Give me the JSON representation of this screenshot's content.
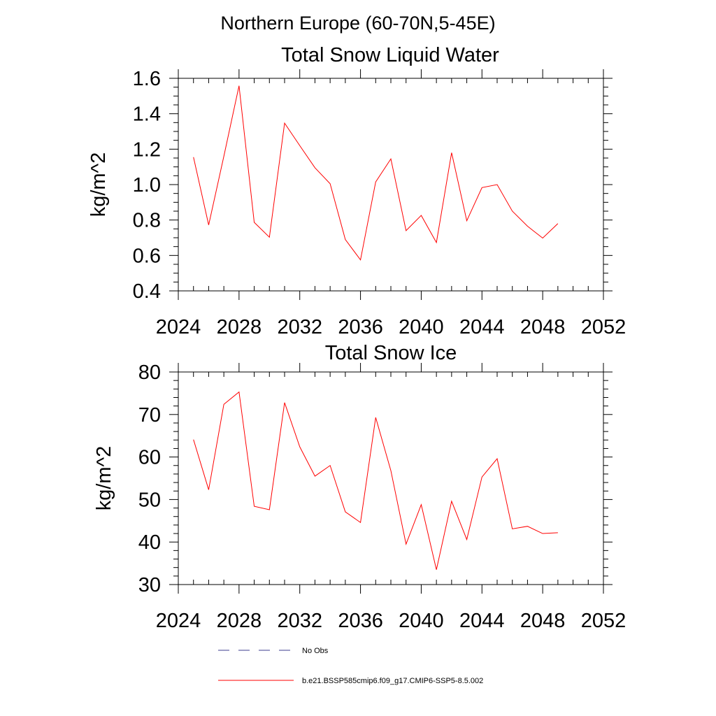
{
  "figure": {
    "title": "Northern Europe (60-70N,5-45E)"
  },
  "chart_data": [
    {
      "type": "line",
      "title": "Total Snow Liquid Water",
      "xlabel": "",
      "ylabel": "kg/m^2",
      "xlim": [
        2024,
        2052
      ],
      "ylim": [
        0.4,
        1.6
      ],
      "x_ticks": [
        2024,
        2028,
        2032,
        2036,
        2040,
        2044,
        2048,
        2052
      ],
      "x_tick_labels": [
        "2024",
        "2028",
        "2032",
        "2036",
        "2040",
        "2044",
        "2048",
        "2052"
      ],
      "y_ticks": [
        0.4,
        0.6,
        0.8,
        1.0,
        1.2,
        1.4,
        1.6
      ],
      "y_tick_labels": [
        "0.4",
        "0.6",
        "0.8",
        "1.0",
        "1.2",
        "1.4",
        "1.6"
      ],
      "x_minor_step": 1,
      "y_minor_step": 0.05,
      "grid": false,
      "series": [
        {
          "name": "b.e21.BSSP585cmip6.f09_g17.CMIP6-SSP5-8.5.002",
          "color": "#ff0000",
          "x": [
            2025,
            2026,
            2027,
            2028,
            2029,
            2030,
            2031,
            2032,
            2033,
            2034,
            2035,
            2036,
            2037,
            2038,
            2039,
            2040,
            2041,
            2042,
            2043,
            2044,
            2045,
            2046,
            2047,
            2048,
            2049
          ],
          "values": [
            1.155,
            0.772,
            1.16,
            1.558,
            0.787,
            0.703,
            1.347,
            1.22,
            1.095,
            1.005,
            0.69,
            0.575,
            1.015,
            1.145,
            0.74,
            0.826,
            0.673,
            1.18,
            0.796,
            0.983,
            1.0,
            0.85,
            0.765,
            0.698,
            0.78
          ]
        }
      ]
    },
    {
      "type": "line",
      "title": "Total Snow Ice",
      "xlabel": "",
      "ylabel": "kg/m^2",
      "xlim": [
        2024,
        2052
      ],
      "ylim": [
        30,
        80
      ],
      "x_ticks": [
        2024,
        2028,
        2032,
        2036,
        2040,
        2044,
        2048,
        2052
      ],
      "x_tick_labels": [
        "2024",
        "2028",
        "2032",
        "2036",
        "2040",
        "2044",
        "2048",
        "2052"
      ],
      "y_ticks": [
        30,
        40,
        50,
        60,
        70,
        80
      ],
      "y_tick_labels": [
        "30",
        "40",
        "50",
        "60",
        "70",
        "80"
      ],
      "x_minor_step": 1,
      "y_minor_step": 2,
      "grid": false,
      "series": [
        {
          "name": "b.e21.BSSP585cmip6.f09_g17.CMIP6-SSP5-8.5.002",
          "color": "#ff0000",
          "x": [
            2025,
            2026,
            2027,
            2028,
            2029,
            2030,
            2031,
            2032,
            2033,
            2034,
            2035,
            2036,
            2037,
            2038,
            2039,
            2040,
            2041,
            2042,
            2043,
            2044,
            2045,
            2046,
            2047,
            2048,
            2049
          ],
          "values": [
            64.1,
            52.3,
            72.4,
            75.3,
            48.4,
            47.6,
            72.8,
            62.4,
            55.5,
            58.0,
            47.1,
            44.6,
            69.3,
            56.8,
            39.5,
            48.8,
            33.5,
            49.6,
            40.6,
            55.3,
            59.6,
            43.1,
            43.7,
            42.0,
            42.2
          ]
        }
      ]
    }
  ],
  "legend": {
    "placement": "bottom",
    "items": [
      {
        "label": "No Obs",
        "color": "#3b3b8f",
        "style": "dashed"
      },
      {
        "label": "b.e21.BSSP585cmip6.f09_g17.CMIP6-SSP5-8.5.002",
        "color": "#ff0000",
        "style": "solid"
      }
    ]
  }
}
